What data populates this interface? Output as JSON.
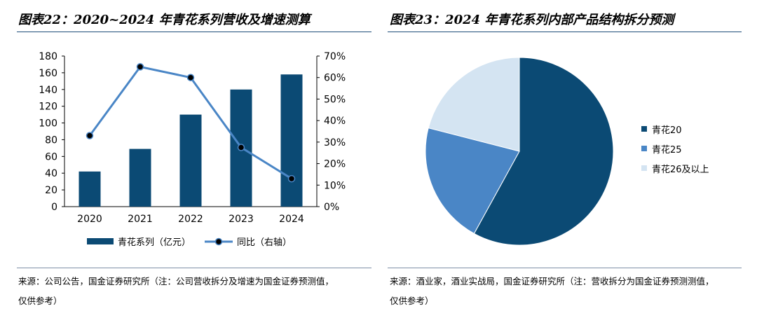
{
  "left": {
    "title": "图表22：2020~2024 年青花系列营收及增速测算",
    "source_line1": "来源：公司公告，国金证券研究所（注：公司营收拆分及增速为国金证券预测值，",
    "source_line2": "仅供参考）"
  },
  "right": {
    "title": "图表23：2024 年青花系列内部产品结构拆分预测",
    "source_line1": "来源：酒业家，酒业实战局，国金证券研究所（注：营收拆分为国金证券预测测值，",
    "source_line2": "仅供参考）"
  },
  "chart_data": [
    {
      "type": "bar",
      "categories": [
        "2020",
        "2021",
        "2022",
        "2023",
        "2024"
      ],
      "series": [
        {
          "name": "青花系列（亿元）",
          "type": "bar",
          "axis": "left",
          "values": [
            42,
            69,
            110,
            140,
            158
          ],
          "color": "#0b4a74"
        },
        {
          "name": "同比（右轴）",
          "type": "line",
          "axis": "right",
          "values": [
            33,
            65,
            60,
            27.5,
            13
          ],
          "color": "#4a86c6"
        }
      ],
      "ylim": [
        0,
        180
      ],
      "yticks": [
        "0",
        "20",
        "40",
        "60",
        "80",
        "100",
        "120",
        "140",
        "160",
        "180"
      ],
      "y2lim": [
        0,
        70
      ],
      "y2ticks": [
        "0%",
        "10%",
        "20%",
        "30%",
        "40%",
        "50%",
        "60%",
        "70%"
      ],
      "legend": "bottom"
    },
    {
      "type": "pie",
      "labels": [
        "青花20",
        "青花25",
        "青花26及以上"
      ],
      "values": [
        58,
        21,
        21
      ],
      "colors": [
        "#0b4a74",
        "#4a86c6",
        "#d4e4f2"
      ],
      "legend": "right"
    }
  ]
}
